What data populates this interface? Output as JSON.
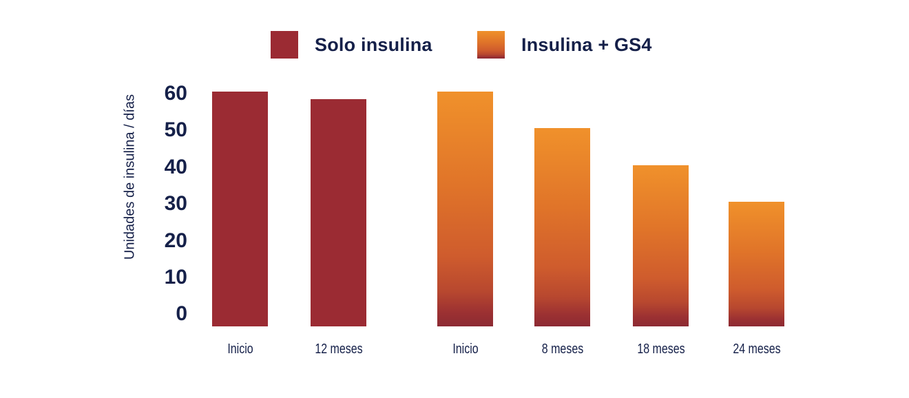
{
  "colors": {
    "background": "#ffffff",
    "navy_text": "#152049",
    "maroon": "#9b2b33",
    "orange_top": "#f0912b",
    "orange_bottom": "#8c2a33"
  },
  "chart_data": {
    "type": "bar",
    "title": "",
    "xlabel": "",
    "ylabel": "Unidades de insulina / días",
    "ylim": [
      0,
      60
    ],
    "yticks": [
      60,
      50,
      40,
      30,
      20,
      10,
      0
    ],
    "grid": false,
    "legend_position": "top",
    "series": [
      {
        "name": "Solo insulina",
        "fill": "solid",
        "color": "#9b2b33",
        "categories": [
          "Inicio",
          "12 meses"
        ],
        "values": [
          60,
          58
        ]
      },
      {
        "name": "Insulina + GS4",
        "fill": "gradient",
        "gradient": [
          "#f0912b",
          "#8c2a33"
        ],
        "categories": [
          "Inicio",
          "8 meses",
          "18 meses",
          "24 meses"
        ],
        "values": [
          60,
          50,
          40,
          30
        ]
      }
    ]
  }
}
